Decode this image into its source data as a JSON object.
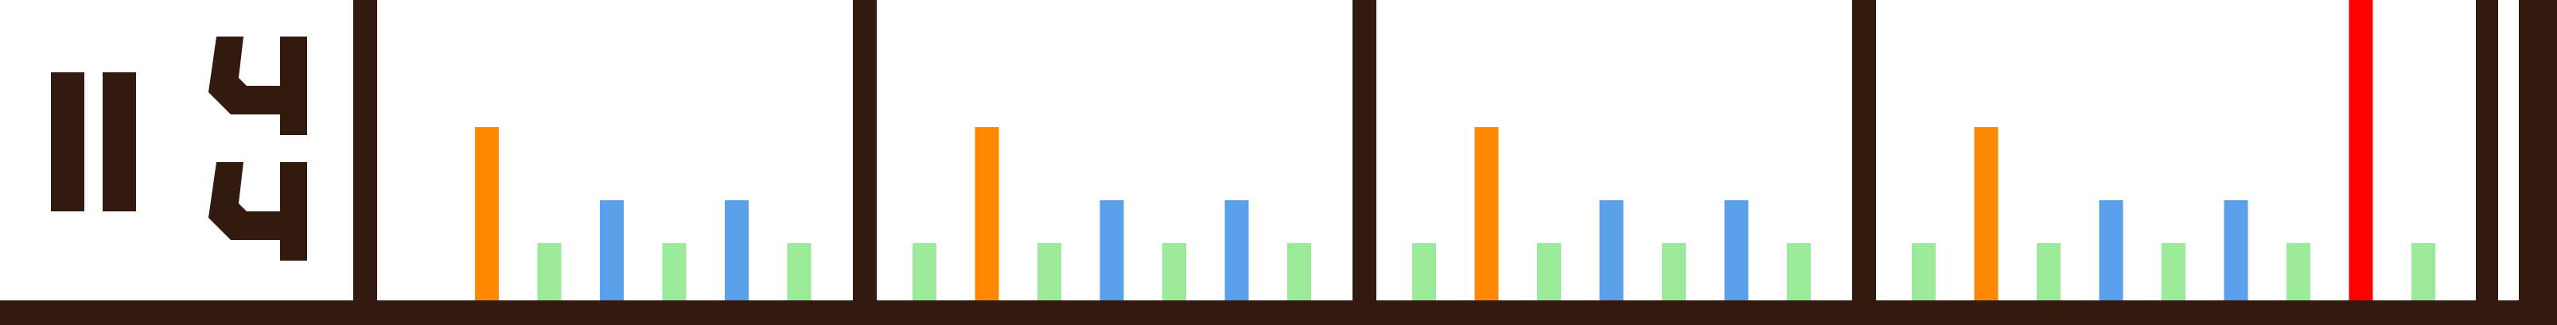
{
  "editor": {
    "time_signature": {
      "repeat_sign": "repeat-start-icon",
      "numerator": "4",
      "denominator": "4"
    },
    "colors": {
      "background": "#ffffff",
      "ink": "#331a10",
      "kick": "#ff8800",
      "snare": "#5a9fea",
      "hihat": "#9aea9a",
      "playhead": "#ff0000"
    },
    "note_levels": {
      "kick": 1.0,
      "snare": 0.58,
      "hihat": 0.33
    },
    "measures": [
      {
        "steps": [
          "kick",
          "hihat",
          "snare",
          "hihat",
          "snare",
          "hihat"
        ]
      },
      {
        "steps": [
          "hihat",
          "kick",
          "hihat",
          "snare",
          "hihat",
          "snare",
          "hihat"
        ]
      },
      {
        "steps": [
          "hihat",
          "kick",
          "hihat",
          "snare",
          "hihat",
          "snare",
          "hihat"
        ]
      },
      {
        "steps": [
          "hihat",
          "kick",
          "hihat",
          "snare",
          "hihat",
          "snare",
          "hihat",
          "playhead",
          "hihat"
        ]
      }
    ],
    "end_bar": "final-barline-icon"
  }
}
